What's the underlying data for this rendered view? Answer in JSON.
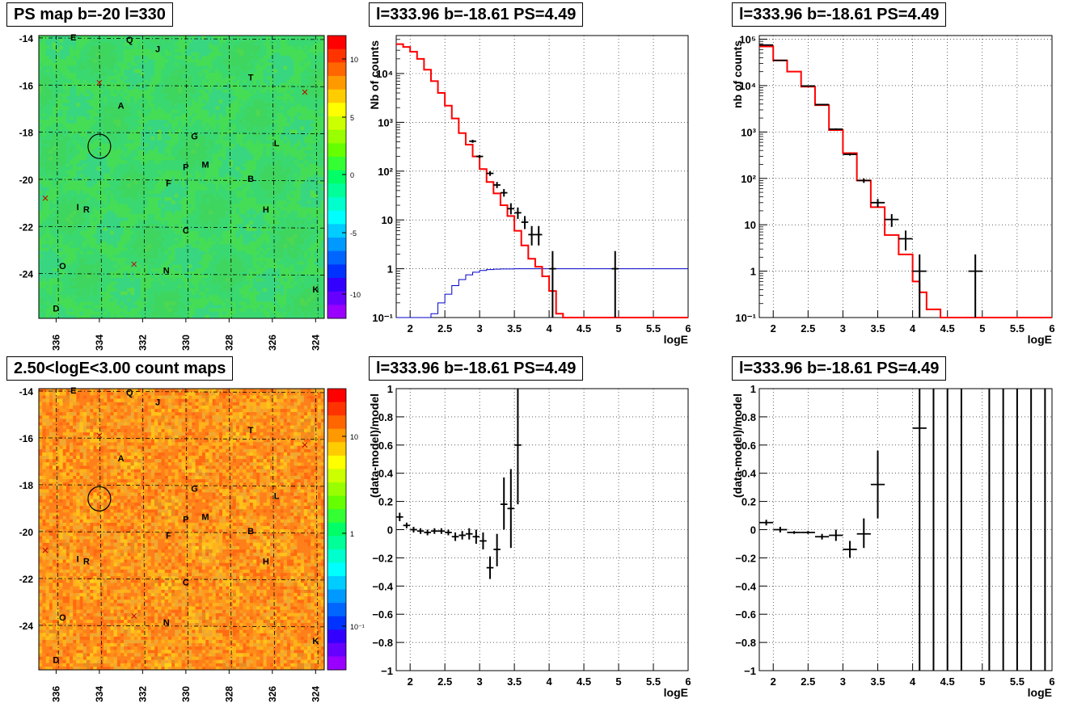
{
  "titles": {
    "map_top": "PS map b=-20 l=330",
    "map_bottom": "2.50<logE<3.00 count maps",
    "spec1": "l=333.96 b=-18.61 PS=4.49",
    "spec2": "l=333.96 b=-18.61 PS=4.49",
    "res1": "l=333.96 b=-18.61 PS=4.49",
    "res2": "l=333.96 b=-18.61 PS=4.49"
  },
  "colors": {
    "red": "#ff0000",
    "blue": "#0000cc",
    "black": "#000000"
  },
  "map": {
    "x_ticks": [
      "336",
      "334",
      "332",
      "330",
      "328",
      "326",
      "324"
    ],
    "y_ticks": [
      "-14",
      "-16",
      "-18",
      "-20",
      "-22",
      "-24"
    ],
    "source_labels": [
      {
        "t": "E",
        "l": 335.2,
        "b": -14.1
      },
      {
        "t": "Q",
        "l": 332.6,
        "b": -14.2
      },
      {
        "t": "J",
        "l": 331.3,
        "b": -14.6
      },
      {
        "t": "T",
        "l": 327.0,
        "b": -15.8
      },
      {
        "t": "A",
        "l": 333.0,
        "b": -17.0
      },
      {
        "t": "G",
        "l": 329.6,
        "b": -18.3
      },
      {
        "t": "L",
        "l": 325.8,
        "b": -18.6
      },
      {
        "t": "P",
        "l": 330.0,
        "b": -19.6
      },
      {
        "t": "M",
        "l": 329.1,
        "b": -19.5
      },
      {
        "t": "F",
        "l": 330.8,
        "b": -20.3
      },
      {
        "t": "B",
        "l": 327.0,
        "b": -20.1
      },
      {
        "t": "I",
        "l": 335.0,
        "b": -21.3
      },
      {
        "t": "R",
        "l": 334.6,
        "b": -21.4
      },
      {
        "t": "H",
        "l": 326.3,
        "b": -21.4
      },
      {
        "t": "C",
        "l": 330.0,
        "b": -22.3
      },
      {
        "t": "O",
        "l": 335.7,
        "b": -23.8
      },
      {
        "t": "N",
        "l": 330.9,
        "b": -24.0
      },
      {
        "t": "K",
        "l": 324.0,
        "b": -24.8
      },
      {
        "t": "D",
        "l": 336.0,
        "b": -25.6
      }
    ],
    "crosses": [
      {
        "l": 334.0,
        "b": -15.9
      },
      {
        "l": 324.5,
        "b": -16.3
      },
      {
        "l": 336.5,
        "b": -20.8
      },
      {
        "l": 332.4,
        "b": -23.6
      }
    ],
    "circle": {
      "l": 334.0,
      "b": -18.6
    },
    "top_colorbar": {
      "ticks": [
        "10",
        "5",
        "0",
        "-5",
        "-10"
      ]
    },
    "bottom_colorbar": {
      "ticks": [
        "10",
        "1",
        "10⁻¹"
      ]
    }
  },
  "chart_data": [
    {
      "type": "line",
      "name": "spec1",
      "xlabel": "logE",
      "ylabel": "Nb of counts",
      "xlim": [
        1.8,
        6
      ],
      "ylim": [
        0.1,
        60000
      ],
      "yscale": "log",
      "x_ticks": [
        "2",
        "2.5",
        "3",
        "3.5",
        "4",
        "4.5",
        "5",
        "5.5",
        "6"
      ],
      "y_ticks": [
        "10⁻¹",
        "1",
        "10",
        "10²",
        "10³",
        "10⁴"
      ],
      "model_red": {
        "edges": [
          1.8,
          1.9,
          2.0,
          2.1,
          2.2,
          2.3,
          2.4,
          2.5,
          2.6,
          2.7,
          2.8,
          2.9,
          3.0,
          3.1,
          3.2,
          3.3,
          3.4,
          3.5,
          3.6,
          3.7,
          3.8,
          3.9,
          4.0,
          4.1,
          4.2,
          6.0
        ],
        "values": [
          40000,
          35000,
          28000,
          20000,
          12000,
          7000,
          4000,
          2200,
          1200,
          600,
          350,
          200,
          110,
          60,
          35,
          20,
          12,
          6,
          3,
          1.6,
          1.1,
          0.7,
          0.35,
          0.12,
          0.1
        ]
      },
      "model_blue": {
        "edges": [
          1.8,
          2.3,
          2.4,
          2.5,
          2.6,
          2.7,
          2.8,
          2.9,
          3.0,
          3.1,
          3.2,
          3.3,
          3.5,
          6.0
        ],
        "values": [
          0.08,
          0.12,
          0.2,
          0.3,
          0.45,
          0.6,
          0.75,
          0.85,
          0.92,
          0.96,
          0.98,
          0.99,
          1.0
        ]
      },
      "data_points": [
        {
          "x": 2.9,
          "y": 410,
          "xerr": 0.05,
          "lo": 380,
          "hi": 440
        },
        {
          "x": 3.0,
          "y": 200,
          "xerr": 0.05,
          "lo": 185,
          "hi": 215
        },
        {
          "x": 3.15,
          "y": 90,
          "xerr": 0.05,
          "lo": 80,
          "hi": 100
        },
        {
          "x": 3.25,
          "y": 52,
          "xerr": 0.05,
          "lo": 45,
          "hi": 60
        },
        {
          "x": 3.35,
          "y": 36,
          "xerr": 0.05,
          "lo": 30,
          "hi": 43
        },
        {
          "x": 3.45,
          "y": 17,
          "xerr": 0.05,
          "lo": 13,
          "hi": 22
        },
        {
          "x": 3.55,
          "y": 14,
          "xerr": 0.05,
          "lo": 10.5,
          "hi": 18
        },
        {
          "x": 3.65,
          "y": 9,
          "xerr": 0.05,
          "lo": 6.5,
          "hi": 12
        },
        {
          "x": 3.75,
          "y": 5,
          "xerr": 0.05,
          "lo": 3,
          "hi": 7.5
        },
        {
          "x": 3.85,
          "y": 5,
          "xerr": 0.05,
          "lo": 3,
          "hi": 7.5
        },
        {
          "x": 4.05,
          "y": 1,
          "xerr": 0.05,
          "lo": 0.1,
          "hi": 2.3
        },
        {
          "x": 4.95,
          "y": 1,
          "xerr": 0.05,
          "lo": 0.1,
          "hi": 2.3
        }
      ]
    },
    {
      "type": "line",
      "name": "spec2",
      "xlabel": "logE",
      "ylabel": "nb of counts",
      "xlim": [
        1.8,
        6
      ],
      "ylim": [
        0.1,
        120000
      ],
      "yscale": "log",
      "x_ticks": [
        "2",
        "2.5",
        "3",
        "3.5",
        "4",
        "4.5",
        "5",
        "5.5",
        "6"
      ],
      "y_ticks": [
        "10⁻¹",
        "1",
        "10",
        "10²",
        "10³",
        "10⁴",
        "10⁵"
      ],
      "model_red": {
        "edges": [
          1.8,
          2.0,
          2.2,
          2.4,
          2.6,
          2.8,
          3.0,
          3.2,
          3.4,
          3.6,
          3.8,
          4.0,
          4.1,
          4.2,
          4.4,
          6.0
        ],
        "values": [
          70000,
          35000,
          20000,
          9500,
          3800,
          1100,
          350,
          90,
          24,
          6,
          2.3,
          0.6,
          0.35,
          0.15,
          0.1
        ]
      },
      "data_points": [
        {
          "x": 1.9,
          "y": 75000,
          "xerr": 0.1,
          "lo": 73000,
          "hi": 77000
        },
        {
          "x": 2.1,
          "y": 35000,
          "xerr": 0.1,
          "lo": 34000,
          "hi": 36000
        },
        {
          "x": 2.5,
          "y": 9800,
          "xerr": 0.1,
          "lo": 9600,
          "hi": 10000
        },
        {
          "x": 2.7,
          "y": 3900,
          "xerr": 0.1,
          "lo": 3800,
          "hi": 4000
        },
        {
          "x": 2.9,
          "y": 1150,
          "xerr": 0.1,
          "lo": 1100,
          "hi": 1200
        },
        {
          "x": 3.1,
          "y": 330,
          "xerr": 0.1,
          "lo": 310,
          "hi": 350
        },
        {
          "x": 3.3,
          "y": 90,
          "xerr": 0.1,
          "lo": 80,
          "hi": 100
        },
        {
          "x": 3.5,
          "y": 30,
          "xerr": 0.1,
          "lo": 24,
          "hi": 36
        },
        {
          "x": 3.7,
          "y": 13,
          "xerr": 0.1,
          "lo": 9,
          "hi": 17
        },
        {
          "x": 3.9,
          "y": 5,
          "xerr": 0.1,
          "lo": 2.8,
          "hi": 7.5
        },
        {
          "x": 4.1,
          "y": 1,
          "xerr": 0.1,
          "lo": 0.1,
          "hi": 2.3
        },
        {
          "x": 4.9,
          "y": 1,
          "xerr": 0.1,
          "lo": 0.1,
          "hi": 2.3
        }
      ]
    },
    {
      "type": "scatter",
      "name": "res1",
      "xlabel": "logE",
      "ylabel": "(data-model)/model",
      "xlim": [
        1.8,
        6
      ],
      "ylim": [
        -1,
        1
      ],
      "x_ticks": [
        "2",
        "2.5",
        "3",
        "3.5",
        "4",
        "4.5",
        "5",
        "5.5",
        "6"
      ],
      "y_ticks": [
        "−1",
        "−0.8",
        "−0.6",
        "−0.4",
        "−0.2",
        "0",
        "0.2",
        "0.4",
        "0.6",
        "0.8",
        "1"
      ],
      "data_points": [
        {
          "x": 1.85,
          "y": 0.09,
          "xerr": 0.05,
          "lo": 0.06,
          "hi": 0.12
        },
        {
          "x": 1.95,
          "y": 0.03,
          "xerr": 0.05,
          "lo": 0.01,
          "hi": 0.05
        },
        {
          "x": 2.05,
          "y": 0.0,
          "xerr": 0.05,
          "lo": -0.02,
          "hi": 0.02
        },
        {
          "x": 2.15,
          "y": -0.01,
          "xerr": 0.05,
          "lo": -0.03,
          "hi": 0.01
        },
        {
          "x": 2.25,
          "y": -0.02,
          "xerr": 0.05,
          "lo": -0.04,
          "hi": 0.0
        },
        {
          "x": 2.35,
          "y": -0.01,
          "xerr": 0.05,
          "lo": -0.03,
          "hi": 0.01
        },
        {
          "x": 2.45,
          "y": -0.01,
          "xerr": 0.05,
          "lo": -0.03,
          "hi": 0.01
        },
        {
          "x": 2.55,
          "y": -0.02,
          "xerr": 0.05,
          "lo": -0.04,
          "hi": 0.0
        },
        {
          "x": 2.65,
          "y": -0.05,
          "xerr": 0.05,
          "lo": -0.08,
          "hi": -0.02
        },
        {
          "x": 2.75,
          "y": -0.04,
          "xerr": 0.05,
          "lo": -0.07,
          "hi": -0.01
        },
        {
          "x": 2.85,
          "y": -0.03,
          "xerr": 0.05,
          "lo": -0.07,
          "hi": 0.01
        },
        {
          "x": 2.95,
          "y": -0.05,
          "xerr": 0.05,
          "lo": -0.1,
          "hi": 0.0
        },
        {
          "x": 3.05,
          "y": -0.08,
          "xerr": 0.05,
          "lo": -0.14,
          "hi": -0.02
        },
        {
          "x": 3.15,
          "y": -0.27,
          "xerr": 0.05,
          "lo": -0.35,
          "hi": -0.19
        },
        {
          "x": 3.25,
          "y": -0.14,
          "xerr": 0.05,
          "lo": -0.26,
          "hi": -0.03
        },
        {
          "x": 3.35,
          "y": 0.18,
          "xerr": 0.05,
          "lo": 0.0,
          "hi": 0.37
        },
        {
          "x": 3.45,
          "y": 0.15,
          "xerr": 0.05,
          "lo": -0.13,
          "hi": 0.43
        },
        {
          "x": 3.55,
          "y": 0.6,
          "xerr": 0.05,
          "lo": 0.18,
          "hi": 1.0
        }
      ]
    },
    {
      "type": "scatter",
      "name": "res2",
      "xlabel": "logE",
      "ylabel": "(data-model)/model",
      "xlim": [
        1.8,
        6
      ],
      "ylim": [
        -1,
        1
      ],
      "x_ticks": [
        "2",
        "2.5",
        "3",
        "3.5",
        "4",
        "4.5",
        "5",
        "5.5",
        "6"
      ],
      "y_ticks": [
        "−1",
        "−0.8",
        "−0.6",
        "−0.4",
        "−0.2",
        "0",
        "0.2",
        "0.4",
        "0.6",
        "0.8",
        "1"
      ],
      "data_points": [
        {
          "x": 1.9,
          "y": 0.05,
          "xerr": 0.1,
          "lo": 0.03,
          "hi": 0.07
        },
        {
          "x": 2.1,
          "y": 0.0,
          "xerr": 0.1,
          "lo": -0.02,
          "hi": 0.02
        },
        {
          "x": 2.3,
          "y": -0.02,
          "xerr": 0.1,
          "lo": -0.03,
          "hi": -0.01
        },
        {
          "x": 2.5,
          "y": -0.02,
          "xerr": 0.1,
          "lo": -0.03,
          "hi": -0.01
        },
        {
          "x": 2.7,
          "y": -0.05,
          "xerr": 0.1,
          "lo": -0.07,
          "hi": -0.03
        },
        {
          "x": 2.9,
          "y": -0.04,
          "xerr": 0.1,
          "lo": -0.08,
          "hi": 0.0
        },
        {
          "x": 3.1,
          "y": -0.14,
          "xerr": 0.1,
          "lo": -0.2,
          "hi": -0.08
        },
        {
          "x": 3.3,
          "y": -0.03,
          "xerr": 0.1,
          "lo": -0.13,
          "hi": 0.08
        },
        {
          "x": 3.5,
          "y": 0.32,
          "xerr": 0.1,
          "lo": 0.08,
          "hi": 0.56
        },
        {
          "x": 4.1,
          "y": 0.72,
          "xerr": 0.1,
          "lo": -1,
          "hi": 1
        },
        {
          "x": 4.3,
          "y": null,
          "xerr": 0,
          "lo": -1,
          "hi": 1
        },
        {
          "x": 4.5,
          "y": null,
          "xerr": 0,
          "lo": -1,
          "hi": 1
        },
        {
          "x": 4.7,
          "y": null,
          "xerr": 0,
          "lo": -1,
          "hi": 1
        },
        {
          "x": 5.1,
          "y": null,
          "xerr": 0,
          "lo": -1,
          "hi": 1
        },
        {
          "x": 5.3,
          "y": null,
          "xerr": 0,
          "lo": -1,
          "hi": 1
        },
        {
          "x": 5.5,
          "y": null,
          "xerr": 0,
          "lo": -1,
          "hi": 1
        },
        {
          "x": 5.7,
          "y": null,
          "xerr": 0,
          "lo": -1,
          "hi": 1
        },
        {
          "x": 5.9,
          "y": null,
          "xerr": 0,
          "lo": -1,
          "hi": 1
        }
      ]
    }
  ]
}
